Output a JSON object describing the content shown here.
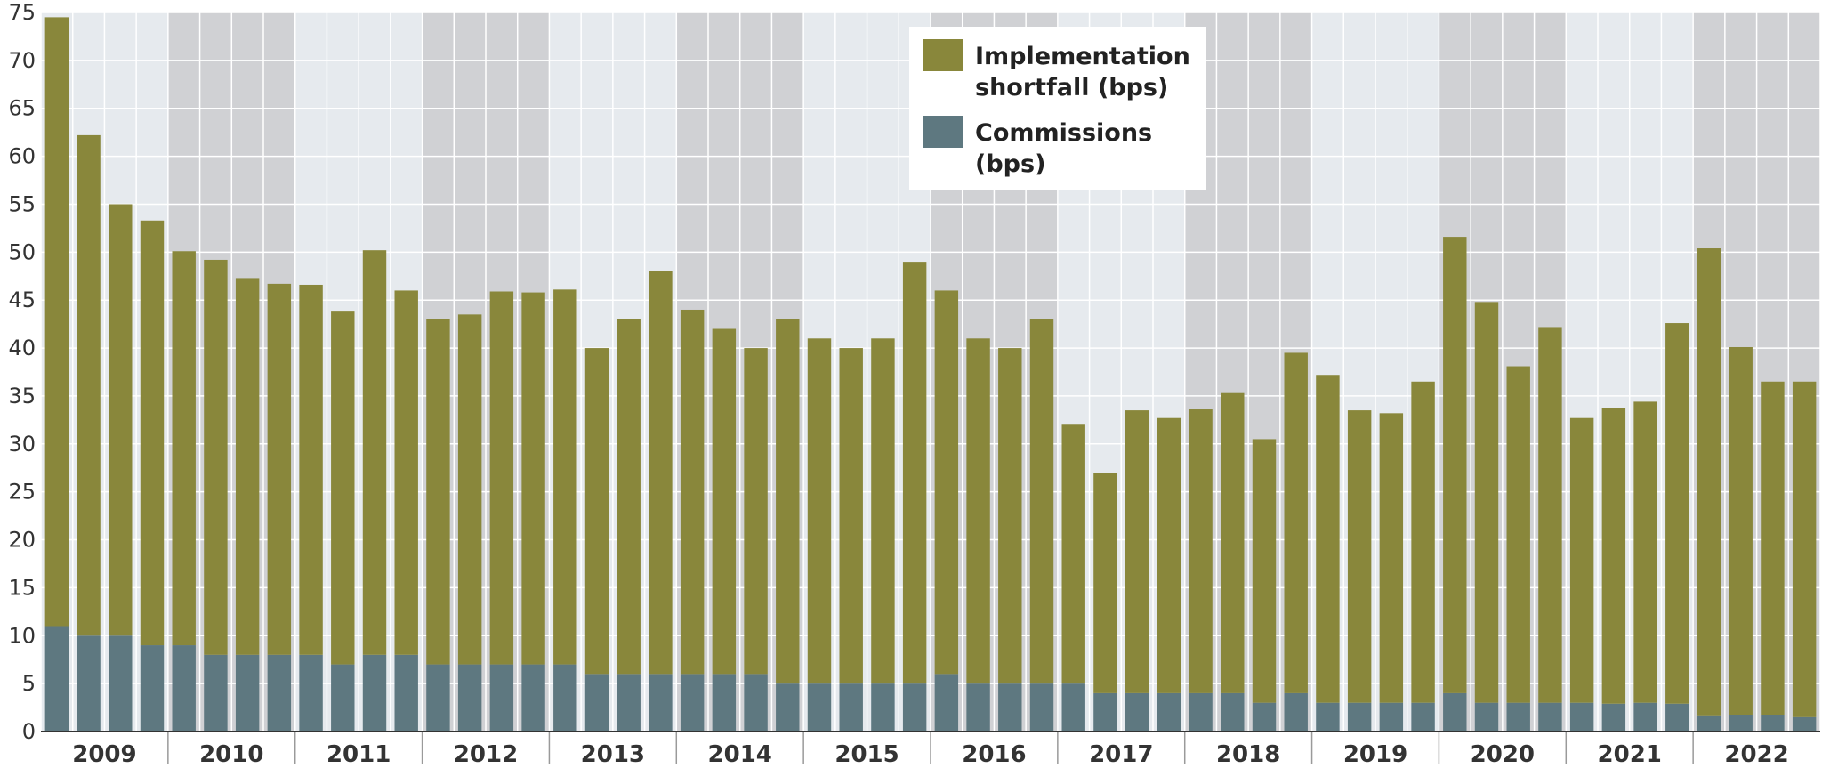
{
  "chart_data": {
    "type": "bar",
    "stacked": true,
    "title": "",
    "xlabel": "",
    "ylabel": "",
    "ylim": [
      0,
      75
    ],
    "yticks": [
      0,
      5,
      10,
      15,
      20,
      25,
      30,
      35,
      40,
      45,
      50,
      55,
      60,
      65,
      70,
      75
    ],
    "year_labels": [
      "2009",
      "2010",
      "2011",
      "2012",
      "2013",
      "2014",
      "2015",
      "2016",
      "2017",
      "2018",
      "2019",
      "2020",
      "2021",
      "2022"
    ],
    "quarters_per_year": 4,
    "grid": true,
    "alternating_year_shading": true,
    "legend_position": "top-right",
    "series": [
      {
        "name": "Commissions (bps)",
        "color": "#5e7880",
        "values": [
          11,
          10,
          10,
          9,
          9,
          8,
          8,
          8,
          8,
          7,
          8,
          8,
          7,
          7,
          7,
          7,
          7,
          6,
          6,
          6,
          6,
          6,
          6,
          5,
          5,
          5,
          5,
          5,
          6,
          5,
          5,
          5,
          5,
          4,
          4,
          4,
          4,
          4,
          3,
          4,
          3,
          3,
          3,
          3,
          4,
          3,
          3,
          3,
          3,
          2.9,
          3,
          2.9,
          1.6,
          1.7,
          1.7,
          1.5
        ]
      },
      {
        "name": "Implementation shortfall (bps)",
        "color": "#89873b",
        "values": [
          63.5,
          52.2,
          45,
          44.3,
          41.1,
          41.2,
          39.3,
          38.7,
          38.6,
          36.8,
          42.2,
          38,
          36,
          36.5,
          38.9,
          38.8,
          39.1,
          34,
          37,
          42,
          38,
          36,
          34,
          38,
          36,
          35,
          36,
          44,
          40,
          36,
          35,
          38,
          27,
          23,
          29.5,
          28.7,
          29.6,
          31.3,
          27.5,
          35.5,
          34.2,
          30.5,
          30.2,
          33.5,
          47.6,
          41.8,
          35.1,
          39.1,
          29.7,
          30.8,
          31.4,
          39.7,
          48.8,
          38.4,
          34.8,
          35
        ]
      }
    ],
    "legend": {
      "entries": [
        {
          "series": "Implementation shortfall (bps)",
          "lines": [
            "Implementation",
            "shortfall (bps)"
          ]
        },
        {
          "series": "Commissions (bps)",
          "lines": [
            "Commissions",
            "(bps)"
          ]
        }
      ]
    },
    "background_colors": {
      "light": "#e6eaee",
      "dark": "#d0d1d4",
      "grid": "#ffffff"
    }
  }
}
